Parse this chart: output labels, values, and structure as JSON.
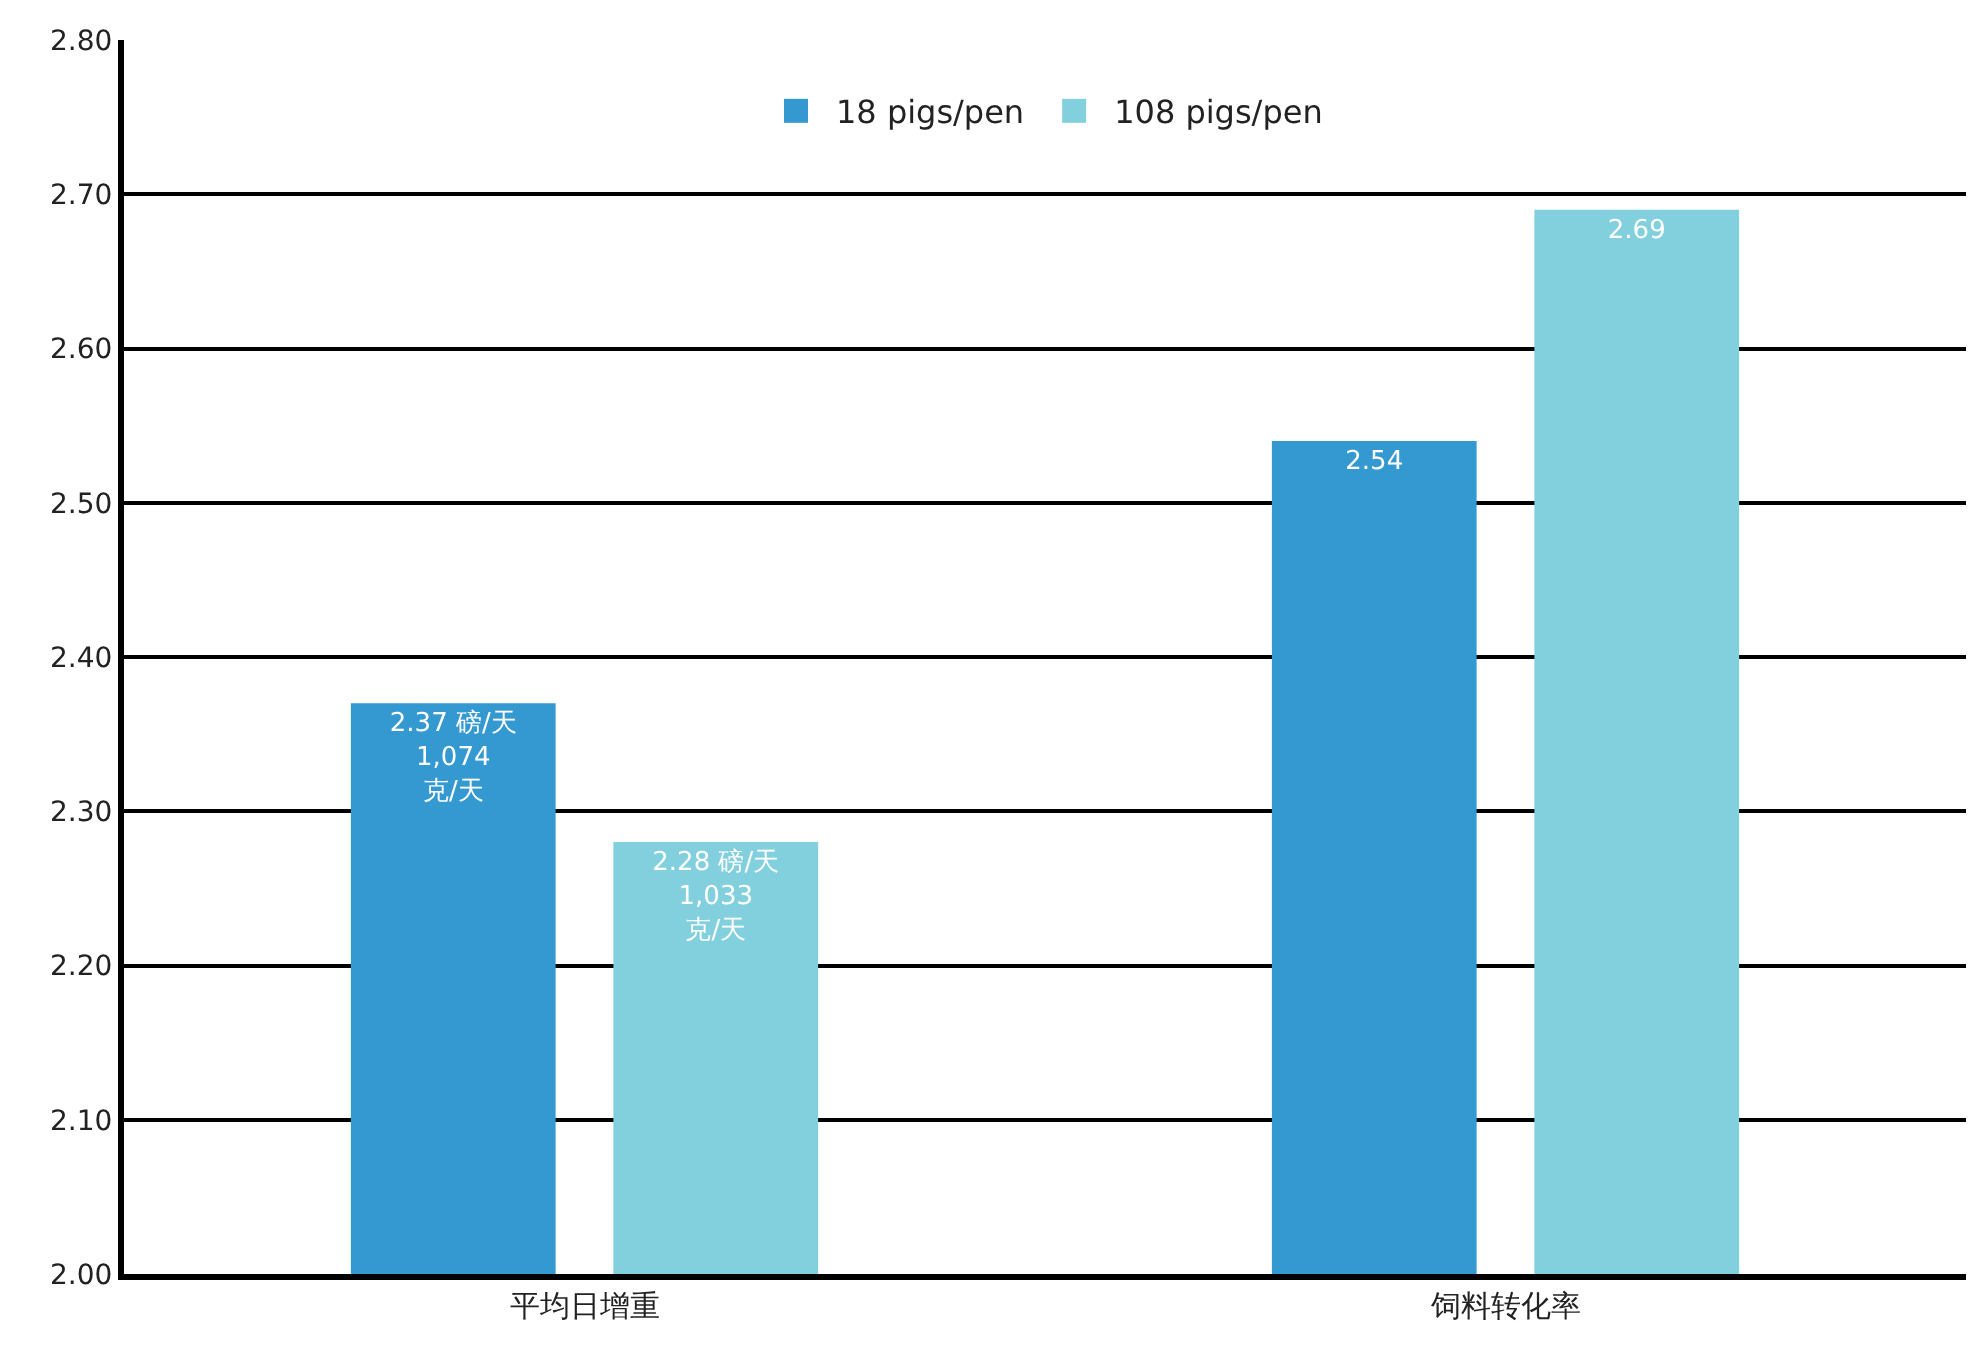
{
  "chart_data": {
    "type": "bar",
    "categories": [
      "平均日增重",
      "饲料转化率"
    ],
    "series": [
      {
        "name": "18 pigs/pen",
        "color": "#3399d0",
        "values": [
          2.37,
          2.54
        ],
        "value_labels": [
          "2.37 磅/天\n1,074\n克/天",
          "2.54"
        ]
      },
      {
        "name": "108 pigs/pen",
        "color": "#82d0de",
        "values": [
          2.28,
          2.69
        ],
        "value_labels": [
          "2.28 磅/天\n1,033\n克/天",
          "2.69"
        ]
      }
    ],
    "ylim": [
      2.0,
      2.8
    ],
    "yticks": [
      {
        "value": 2.0,
        "label": "2.00"
      },
      {
        "value": 2.1,
        "label": "2.10"
      },
      {
        "value": 2.2,
        "label": "2.20"
      },
      {
        "value": 2.3,
        "label": "2.30"
      },
      {
        "value": 2.4,
        "label": "2.40"
      },
      {
        "value": 2.5,
        "label": "2.50"
      },
      {
        "value": 2.6,
        "label": "2.60"
      },
      {
        "value": 2.7,
        "label": "2.70"
      },
      {
        "value": 2.8,
        "label": "2.80"
      }
    ],
    "grid": "y",
    "legend": "top"
  }
}
